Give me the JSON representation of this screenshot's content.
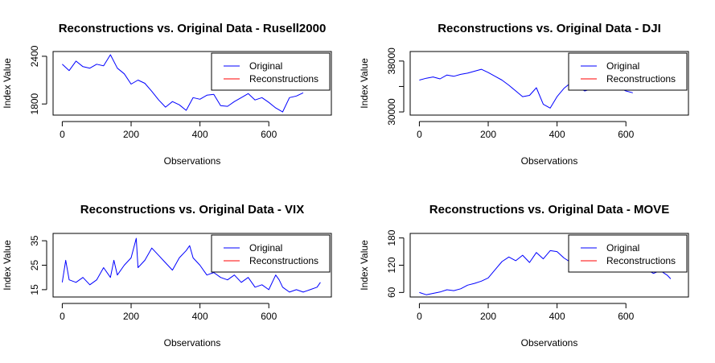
{
  "chart_data": [
    {
      "type": "line",
      "title": "Reconstructions vs. Original Data - Rusell2000",
      "xlabel": "Observations",
      "ylabel": "Index Value",
      "xlim": [
        0,
        755
      ],
      "ylim": [
        1660,
        2460
      ],
      "xticks": [
        0,
        200,
        400,
        600
      ],
      "xtick_labels": [
        "0",
        "200",
        "400",
        "600"
      ],
      "yticks": [
        1800,
        2400
      ],
      "ytick_labels": [
        "1800",
        "2400"
      ],
      "legend": {
        "position": "top-right",
        "entries": [
          {
            "label": "Original",
            "color": "#0000ff"
          },
          {
            "label": "Reconstructions",
            "color": "#ff0000"
          }
        ]
      },
      "series": [
        {
          "name": "Original",
          "color": "#0000ff",
          "x": [
            0,
            20,
            40,
            60,
            80,
            100,
            120,
            140,
            160,
            180,
            200,
            220,
            240,
            260,
            280,
            300,
            320,
            340,
            360,
            380,
            400,
            420,
            440,
            460,
            480,
            500,
            520,
            540,
            560,
            580,
            600,
            620,
            640,
            660,
            680,
            700
          ],
          "y": [
            2300,
            2220,
            2340,
            2270,
            2250,
            2300,
            2280,
            2420,
            2250,
            2180,
            2050,
            2100,
            2060,
            1960,
            1850,
            1760,
            1830,
            1790,
            1720,
            1880,
            1860,
            1910,
            1920,
            1780,
            1770,
            1830,
            1880,
            1930,
            1850,
            1880,
            1820,
            1750,
            1700,
            1880,
            1900,
            1940
          ]
        }
      ]
    },
    {
      "type": "line",
      "title": "Reconstructions vs. Original Data - DJI",
      "xlabel": "Observations",
      "ylabel": "Index Value",
      "xlim": [
        0,
        755
      ],
      "ylim": [
        29500,
        39500
      ],
      "xticks": [
        0,
        200,
        400,
        600
      ],
      "xtick_labels": [
        "0",
        "200",
        "400",
        "600"
      ],
      "yticks": [
        30000,
        34000,
        38000
      ],
      "ytick_labels": [
        "30000",
        "",
        "38000"
      ],
      "legend": {
        "position": "top-right",
        "entries": [
          {
            "label": "Original",
            "color": "#0000ff"
          },
          {
            "label": "Reconstructions",
            "color": "#ff0000"
          }
        ]
      },
      "series": [
        {
          "name": "Original",
          "color": "#0000ff",
          "x": [
            0,
            20,
            40,
            60,
            80,
            100,
            120,
            140,
            160,
            180,
            200,
            220,
            240,
            260,
            280,
            300,
            320,
            340,
            360,
            380,
            400,
            420,
            440,
            460,
            480,
            500,
            520,
            540,
            560,
            580,
            600,
            620
          ],
          "y": [
            35000,
            35300,
            35500,
            35200,
            35800,
            35600,
            35900,
            36100,
            36400,
            36700,
            36200,
            35600,
            35000,
            34200,
            33300,
            32400,
            32600,
            33800,
            31200,
            30600,
            32400,
            33700,
            34600,
            33900,
            33300,
            33600,
            34200,
            34900,
            34400,
            33800,
            33300,
            33000
          ]
        }
      ]
    },
    {
      "type": "line",
      "title": "Reconstructions vs. Original Data - VIX",
      "xlabel": "Observations",
      "ylabel": "Index Value",
      "xlim": [
        0,
        755
      ],
      "ylim": [
        12,
        38
      ],
      "xticks": [
        0,
        200,
        400,
        600
      ],
      "xtick_labels": [
        "0",
        "200",
        "400",
        "600"
      ],
      "yticks": [
        15,
        25,
        35
      ],
      "ytick_labels": [
        "15",
        "25",
        "35"
      ],
      "legend": {
        "position": "top-right",
        "entries": [
          {
            "label": "Original",
            "color": "#0000ff"
          },
          {
            "label": "Reconstructions",
            "color": "#ff0000"
          }
        ]
      },
      "series": [
        {
          "name": "Original",
          "color": "#0000ff",
          "x": [
            0,
            10,
            20,
            40,
            60,
            80,
            100,
            120,
            140,
            150,
            160,
            180,
            200,
            215,
            220,
            240,
            260,
            280,
            300,
            320,
            340,
            360,
            370,
            380,
            400,
            420,
            440,
            460,
            480,
            500,
            520,
            540,
            560,
            580,
            600,
            620,
            630,
            640,
            660,
            680,
            700,
            720,
            740,
            750
          ],
          "y": [
            18,
            27,
            19,
            18,
            20,
            17,
            19,
            24,
            20,
            27,
            21,
            25,
            28,
            36,
            24,
            27,
            32,
            29,
            26,
            23,
            28,
            31,
            33,
            28,
            25,
            21,
            22,
            20,
            19,
            21,
            18,
            20,
            16,
            17,
            15,
            21,
            19,
            16,
            14,
            15,
            14,
            15,
            16,
            18
          ]
        }
      ]
    },
    {
      "type": "line",
      "title": "Reconstructions vs. Original Data - MOVE",
      "xlabel": "Observations",
      "ylabel": "Index Value",
      "xlim": [
        0,
        755
      ],
      "ylim": [
        50,
        190
      ],
      "xticks": [
        0,
        200,
        400,
        600
      ],
      "xtick_labels": [
        "0",
        "200",
        "400",
        "600"
      ],
      "yticks": [
        60,
        120,
        180
      ],
      "ytick_labels": [
        "60",
        "120",
        "180"
      ],
      "legend": {
        "position": "top-right",
        "entries": [
          {
            "label": "Original",
            "color": "#0000ff"
          },
          {
            "label": "Reconstructions",
            "color": "#ff0000"
          }
        ]
      },
      "series": [
        {
          "name": "Original",
          "color": "#0000ff",
          "x": [
            0,
            20,
            40,
            60,
            80,
            100,
            120,
            140,
            160,
            180,
            200,
            220,
            240,
            260,
            280,
            300,
            320,
            340,
            360,
            380,
            400,
            420,
            440,
            460,
            480,
            500,
            520,
            540,
            560,
            580,
            600,
            620,
            640,
            660,
            680,
            700,
            720,
            730
          ],
          "y": [
            60,
            55,
            58,
            61,
            66,
            64,
            68,
            76,
            80,
            85,
            92,
            110,
            128,
            138,
            130,
            142,
            126,
            148,
            134,
            152,
            150,
            136,
            126,
            130,
            122,
            124,
            118,
            120,
            115,
            113,
            110,
            115,
            105,
            110,
            102,
            108,
            98,
            90
          ]
        }
      ]
    }
  ]
}
